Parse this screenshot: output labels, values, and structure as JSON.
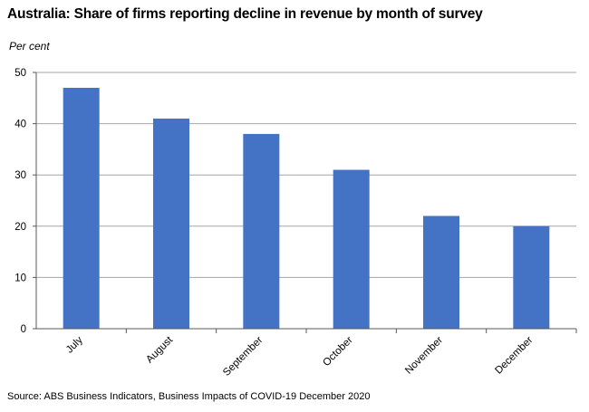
{
  "title": "Australia: Share of firms reporting decline in revenue by month of survey",
  "unit_label": "Per cent",
  "source": "Source: ABS Business Indicators, Business Impacts of COVID-19 December 2020",
  "colors": {
    "bar": "#4472C4",
    "gridline": "#a6a6a6",
    "axis": "#595959"
  },
  "chart_data": {
    "type": "bar",
    "categories": [
      "July",
      "August",
      "September",
      "October",
      "November",
      "December"
    ],
    "values": [
      47,
      41,
      38,
      31,
      22,
      20
    ],
    "title": "Australia: Share of firms reporting decline in revenue by month of survey",
    "xlabel": "",
    "ylabel": "Per cent",
    "ylim": [
      0,
      50
    ],
    "yticks": [
      0,
      10,
      20,
      30,
      40,
      50
    ],
    "grid": true,
    "legend": "none"
  }
}
